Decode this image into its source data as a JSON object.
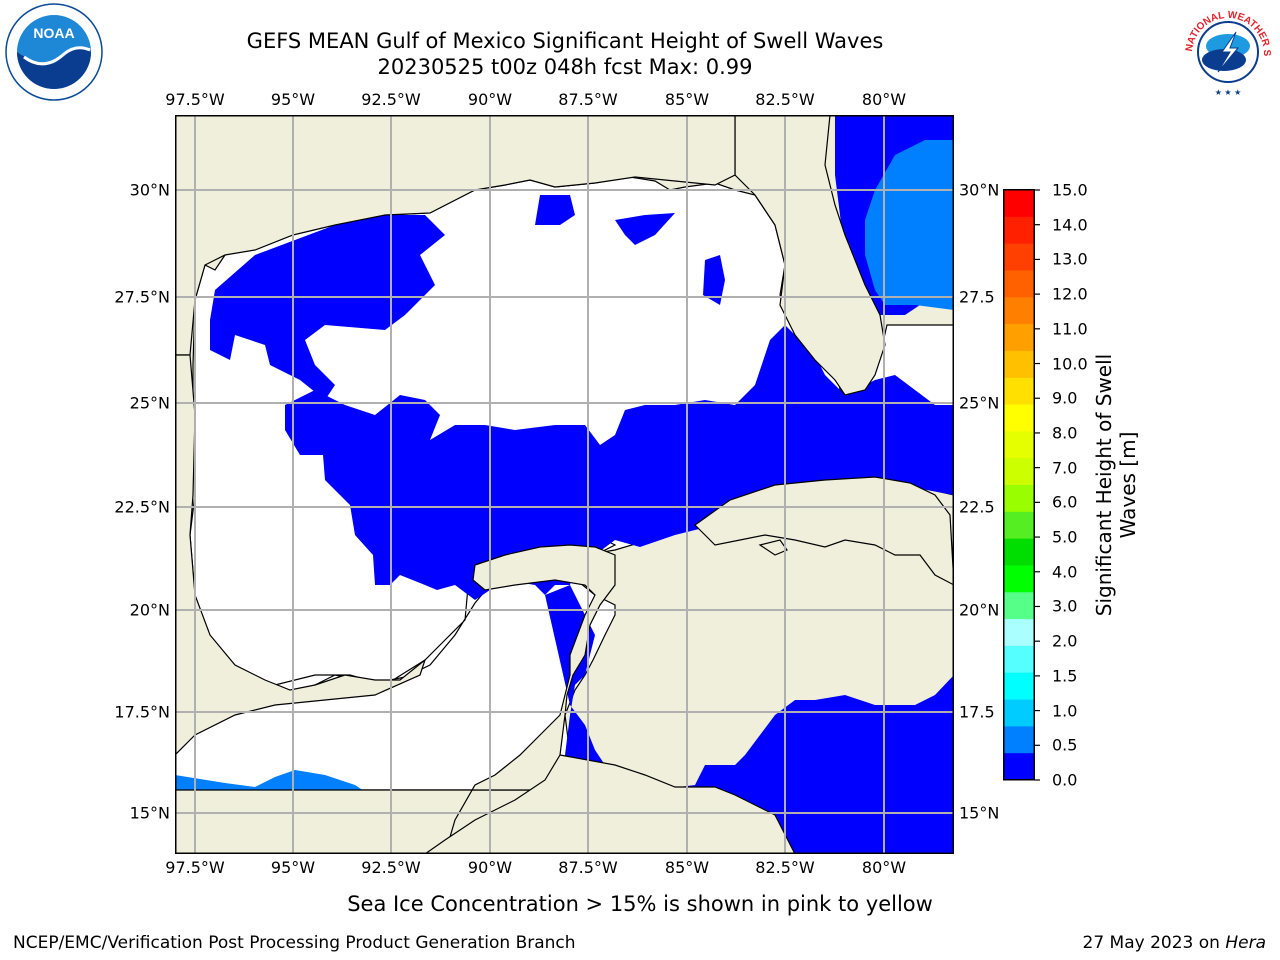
{
  "header": {
    "title_line1": "GEFS MEAN Gulf of Mexico Significant Height of Swell Waves",
    "title_line2": "20230525 t00z 048h fcst   Max: 0.99"
  },
  "logos": {
    "noaa": {
      "text": "NOAA",
      "icon": "noaa-logo-icon",
      "color": "#0a4a9a"
    },
    "nws": {
      "text": "NATIONAL WEATHER SERVICE",
      "icon": "nws-logo-icon",
      "color": "#e3232c"
    }
  },
  "map": {
    "lon_labels": [
      "97.5°W",
      "95°W",
      "92.5°W",
      "90°W",
      "87.5°W",
      "85°W",
      "82.5°W",
      "80°W"
    ],
    "lat_labels": [
      "30°N",
      "27.5°N",
      "25°N",
      "22.5°N",
      "20°N",
      "17.5°N",
      "15°N"
    ],
    "lat_labels_right": [
      "30°N",
      "27.5",
      "25°N",
      "22.5",
      "20°N",
      "17.5",
      "15°N"
    ],
    "land_color": "#efefdc",
    "ocean_low_color": "#0000ff",
    "ocean_mid_color": "#0080ff"
  },
  "colorbar": {
    "ticks": [
      "15.0",
      "14.0",
      "13.0",
      "12.0",
      "11.0",
      "10.0",
      "9.0",
      "8.0",
      "7.0",
      "6.0",
      "5.0",
      "4.0",
      "3.0",
      "2.0",
      "1.5",
      "1.0",
      "0.5",
      "0.0"
    ],
    "colors": [
      "#ff0000",
      "#ff2000",
      "#ff4000",
      "#ff6000",
      "#ff8000",
      "#ffa000",
      "#ffc000",
      "#ffe000",
      "#ffff00",
      "#e6ff00",
      "#ccff00",
      "#99ff00",
      "#55ee22",
      "#00dd00",
      "#00ff00",
      "#55ff88",
      "#aaffff",
      "#55ffff",
      "#00ffff",
      "#00ccff",
      "#0080ff",
      "#0000ff"
    ],
    "label": "Significant Height of Swell Waves [m]"
  },
  "note": "Sea Ice Concentration > 15% is shown in pink to yellow",
  "footer": {
    "left": "NCEP/EMC/Verification Post Processing Product Generation Branch",
    "right_date": "27 May 2023 on ",
    "right_host": "Hera"
  }
}
